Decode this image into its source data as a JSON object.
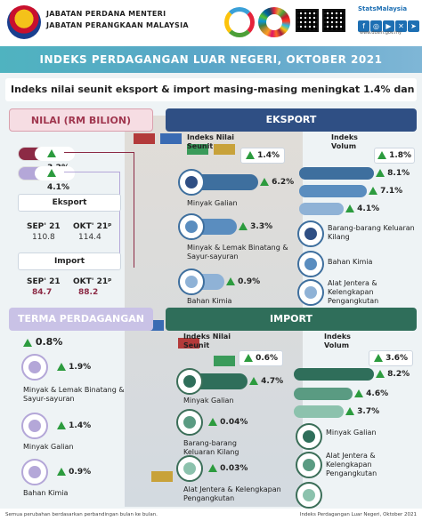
{
  "header": {
    "agency_line1": "JABATAN PERDANA MENTERI",
    "agency_line2": "JABATAN PERANGKAAN MALAYSIA",
    "brand": "StatsMalaysia",
    "website": "www.dosm.gov.my"
  },
  "title": "INDEKS PERDAGANGAN LUAR NEGERI, OKTOBER 2021",
  "subtitle": "Indeks nilai seunit eksport & import masing-masing meningkat 1.4% dan 0.6 %",
  "nilai": {
    "heading": "NILAI (RM BILION)",
    "pct_export": "3.2%",
    "pct_import": "4.1%",
    "export_label": "Eksport",
    "import_label": "Import",
    "sep_label": "SEP' 21",
    "okt_label": "OKT' 21ᵖ",
    "export_sep": "110.8",
    "export_okt": "114.4",
    "import_sep": "84.7",
    "import_okt": "88.2"
  },
  "eksport": {
    "heading": "EKSPORT",
    "nilai_label": "Indeks Nilai Seunit",
    "nilai_pct": "1.4%",
    "volum_label": "Indeks Volum",
    "volum_pct": "1.8%",
    "nilai_items": [
      {
        "name": "Minyak Galian",
        "pct": "6.2%"
      },
      {
        "name": "Minyak & Lemak Binatang & Sayur-sayuran",
        "pct": "3.3%"
      },
      {
        "name": "Bahan Kimia",
        "pct": "0.9%"
      }
    ],
    "volum_items": [
      {
        "name": "Barang-barang Keluaran Kilang",
        "pct": "8.1%"
      },
      {
        "name": "Bahan Kimia",
        "pct": "7.1%"
      },
      {
        "name": "Alat Jentera & Kelengkapan Pengangkutan",
        "pct": "4.1%"
      }
    ]
  },
  "terma": {
    "heading": "TERMA PERDAGANGAN",
    "pct": "0.8%",
    "items": [
      {
        "name": "Minyak & Lemak Binatang & Sayur-sayuran",
        "pct": "1.9%"
      },
      {
        "name": "Minyak Galian",
        "pct": "1.4%"
      },
      {
        "name": "Bahan Kimia",
        "pct": "0.9%"
      }
    ]
  },
  "import": {
    "heading": "IMPORT",
    "nilai_label": "Indeks Nilai Seunit",
    "nilai_pct": "0.6%",
    "volum_label": "Indeks Volum",
    "volum_pct": "3.6%",
    "nilai_items": [
      {
        "name": "Minyak Galian",
        "pct": "4.7%"
      },
      {
        "name": "Barang-barang Keluaran Kilang",
        "pct": "0.04%"
      },
      {
        "name": "Alat Jentera & Kelengkapan Pengangkutan",
        "pct": "0.03%"
      }
    ],
    "volum_items": [
      {
        "name": "",
        "pct": "8.2%"
      },
      {
        "name": "Minyak Galian",
        "pct": "4.6%"
      },
      {
        "name": "Alat Jentera & Kelengkapan Pengangkutan",
        "pct": "3.7%"
      }
    ]
  },
  "footer": {
    "left": "Semua perubahan berdasarkan perbandingan bulan ke bulan.",
    "right": "Indeks Perdagangan Luar Negeri, Oktober 2021"
  },
  "colors": {
    "navy": "#2f4f84",
    "green_up": "#2c9b3e",
    "maroon": "#8c2a45",
    "lavender": "#b4a7d8",
    "teal_title": "#4fb3c0"
  }
}
